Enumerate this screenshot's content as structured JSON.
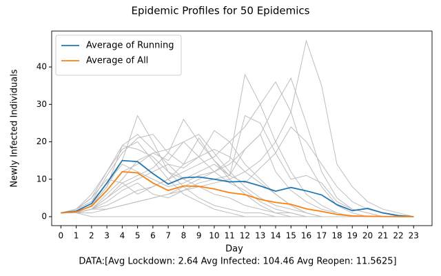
{
  "chart_data": {
    "type": "line",
    "title": "Epidemic Profiles for 50 Epidemics",
    "x_label": "Day",
    "y_label": "Newly Infected Individuals",
    "footer": "DATA:[Avg Lockdown: 2.64 Avg Infected: 104.46 Avg Reopen: 11.5625]",
    "x": [
      0,
      1,
      2,
      3,
      4,
      5,
      6,
      7,
      8,
      9,
      10,
      11,
      12,
      13,
      14,
      15,
      16,
      17,
      18,
      19,
      20,
      21,
      22,
      23
    ],
    "xlim": [
      -0.6,
      24.2
    ],
    "xticks": [
      0,
      1,
      2,
      3,
      4,
      5,
      6,
      7,
      8,
      9,
      10,
      11,
      12,
      13,
      14,
      15,
      16,
      17,
      18,
      19,
      20,
      21,
      22,
      23
    ],
    "ylim": [
      -2.4,
      49.6
    ],
    "yticks": [
      0,
      10,
      20,
      30,
      40
    ],
    "legend": "upper left",
    "series": [
      {
        "name": "Average of Running",
        "color": "#1f77b4",
        "values": [
          1,
          1.5,
          3.5,
          9,
          15,
          14.7,
          11.5,
          8.7,
          10.4,
          10.6,
          10,
          9.3,
          9.4,
          8.2,
          6.8,
          7.8,
          6.9,
          5.8,
          3.2,
          1.6,
          2.2,
          1,
          0.3,
          0
        ]
      },
      {
        "name": "Average of All",
        "color": "#ff7f0e",
        "values": [
          1,
          1.3,
          2.8,
          7,
          12,
          11.7,
          9,
          7,
          8.2,
          8.1,
          7.4,
          6.4,
          5.9,
          4.6,
          3.8,
          3.3,
          2.1,
          1.4,
          0.6,
          0.2,
          0.1,
          0.05,
          0,
          0
        ]
      }
    ],
    "epidemic_color": "#bdbdbd",
    "epidemics": [
      {
        "values": [
          1,
          2,
          5,
          12,
          19,
          22,
          18,
          14,
          10,
          8,
          6,
          5,
          3,
          2,
          1,
          1,
          0,
          0,
          0,
          0,
          0,
          0,
          0,
          0
        ]
      },
      {
        "values": [
          1,
          1,
          3,
          8,
          15,
          27,
          20,
          12,
          8,
          5,
          3,
          2,
          1,
          1,
          0,
          0,
          0,
          0,
          0,
          0,
          0,
          0,
          0,
          0
        ]
      },
      {
        "values": [
          1,
          1,
          0,
          0,
          0,
          0,
          0,
          0,
          0,
          0,
          0,
          0,
          0,
          0,
          0,
          0,
          0,
          0,
          0,
          0,
          0,
          0,
          0,
          0
        ]
      },
      {
        "values": [
          1,
          1,
          2,
          6,
          10,
          15,
          17,
          18,
          20,
          22,
          17,
          12,
          8,
          5,
          3,
          2,
          1,
          0,
          0,
          0,
          0,
          0,
          0,
          0
        ]
      },
      {
        "values": [
          1,
          2,
          4,
          9,
          14,
          12,
          10,
          8,
          9,
          11,
          12,
          15,
          38,
          30,
          20,
          12,
          6,
          3,
          1,
          0,
          0,
          0,
          0,
          0
        ]
      },
      {
        "values": [
          1,
          1,
          2,
          3,
          5,
          7,
          8,
          10,
          12,
          14,
          16,
          20,
          24,
          30,
          36,
          28,
          15,
          8,
          3,
          1,
          0,
          0,
          0,
          0
        ]
      },
      {
        "values": [
          1,
          1,
          2,
          2,
          3,
          4,
          5,
          6,
          8,
          10,
          12,
          14,
          18,
          22,
          30,
          37,
          25,
          12,
          5,
          2,
          1,
          0,
          0,
          0
        ]
      },
      {
        "values": [
          1,
          1,
          1,
          2,
          3,
          4,
          5,
          6,
          7,
          8,
          9,
          10,
          12,
          15,
          20,
          28,
          47,
          35,
          14,
          8,
          4,
          2,
          1,
          0
        ]
      },
      {
        "values": [
          1,
          2,
          6,
          12,
          18,
          20,
          15,
          10,
          6,
          4,
          2,
          1,
          0,
          0,
          0,
          0,
          0,
          0,
          0,
          0,
          0,
          0,
          0,
          0
        ]
      },
      {
        "values": [
          1,
          1,
          3,
          7,
          12,
          14,
          17,
          15,
          20,
          16,
          12,
          9,
          7,
          4,
          2,
          1,
          0,
          0,
          0,
          0,
          0,
          0,
          0,
          0
        ]
      },
      {
        "values": [
          1,
          2,
          5,
          10,
          9,
          11,
          13,
          17,
          26,
          20,
          15,
          10,
          6,
          3,
          1,
          0,
          0,
          0,
          0,
          0,
          0,
          0,
          0,
          0
        ]
      },
      {
        "values": [
          1,
          1,
          2,
          5,
          8,
          10,
          12,
          14,
          13,
          16,
          23,
          20,
          14,
          10,
          6,
          3,
          1,
          0,
          0,
          0,
          0,
          0,
          0,
          0
        ]
      },
      {
        "values": [
          1,
          1,
          3,
          8,
          19,
          18,
          16,
          12,
          10,
          12,
          14,
          11,
          9,
          13,
          17,
          24,
          20,
          14,
          8,
          4,
          2,
          1,
          0,
          0
        ]
      },
      {
        "values": [
          1,
          1,
          2,
          4,
          7,
          9,
          6,
          5,
          7,
          9,
          10,
          11,
          18,
          22,
          12,
          7,
          4,
          2,
          1,
          0,
          0,
          0,
          0,
          0
        ]
      },
      {
        "values": [
          1,
          2,
          4,
          11,
          17,
          21,
          22,
          17,
          14,
          16,
          18,
          16,
          12,
          9,
          6,
          3,
          1,
          0,
          0,
          0,
          0,
          0,
          0,
          0
        ]
      },
      {
        "values": [
          1,
          1,
          2,
          5,
          9,
          6,
          8,
          10,
          14,
          21,
          15,
          11,
          27,
          25,
          17,
          10,
          11,
          9,
          4,
          2,
          1,
          0,
          0,
          0
        ]
      }
    ]
  }
}
